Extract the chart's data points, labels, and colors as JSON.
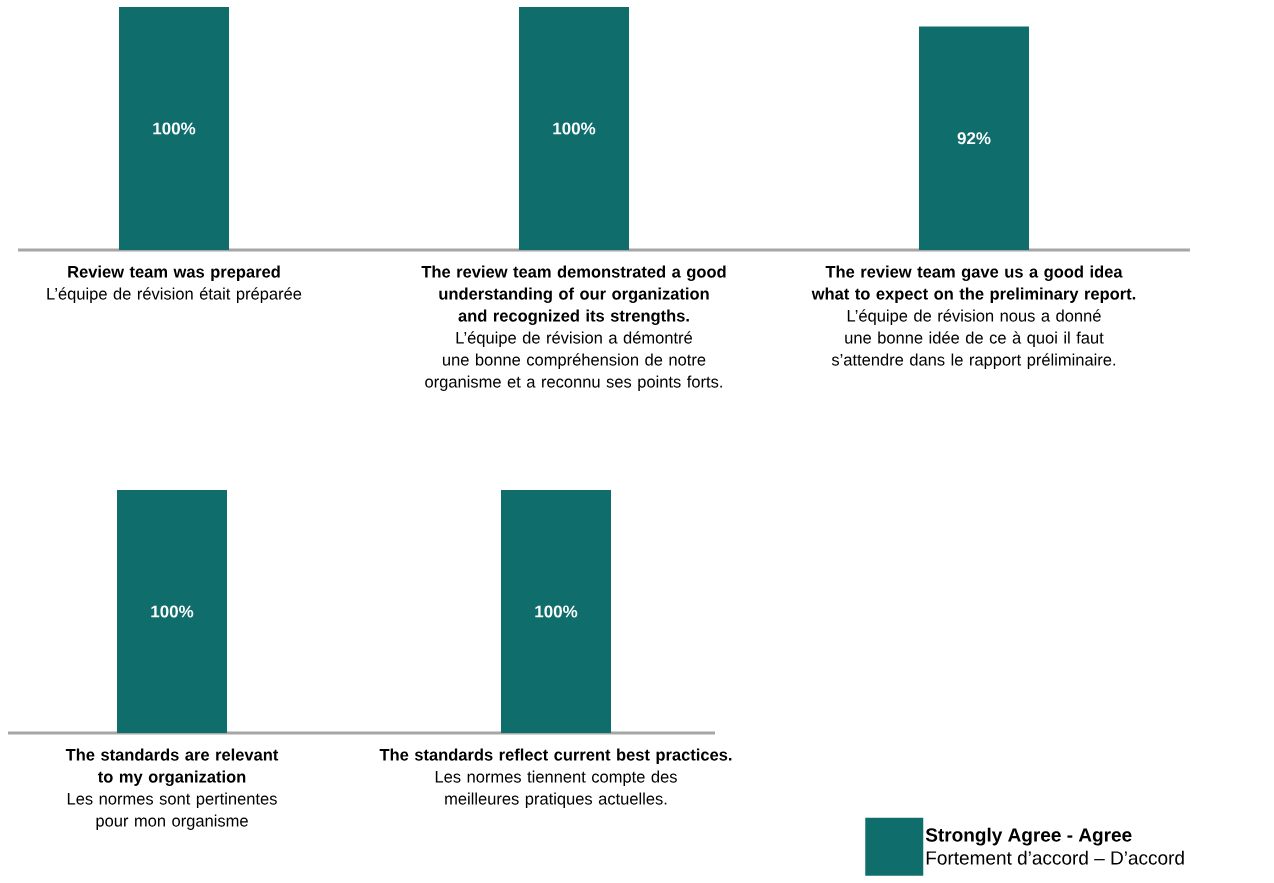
{
  "chart_data": [
    {
      "type": "bar",
      "categories": [
        "**Review team was prepared**\nL’équipe de révision était préparée",
        "**The review team demonstrated a good understanding of our organization and recognized its strengths.**\nL’équipe de révision a démontré une bonne compréhension de notre organisme et a reconnu ses points forts.",
        "**The review team gave us a good idea what to expect on the preliminary report.**\nL’équipe de révision nous a donné une bonne idée de ce à quoi il faut s’attendre dans le rapport préliminaire."
      ],
      "series": [
        {
          "color": "#0f6e6c",
          "values": [
            100,
            100,
            92
          ],
          "value_labels": [
            "100%",
            "100%",
            "92%"
          ]
        }
      ]
    },
    {
      "type": "bar",
      "categories": [
        "**The standards are relevant to my organization**\nLes normes sont pertinentes pour mon organisme",
        "**The standards reflect current best practices.**\nLes normes tiennent compte des meilleures pratiques actuelles."
      ],
      "series": [
        {
          "name": "**Strongly Agree - Agree**\nFortement d’accord – D’accord",
          "color": "#0f6e6c",
          "values": [
            100,
            100
          ],
          "value_labels": [
            "100%",
            "100%"
          ]
        }
      ],
      "legend": "bottom right"
    }
  ]
}
